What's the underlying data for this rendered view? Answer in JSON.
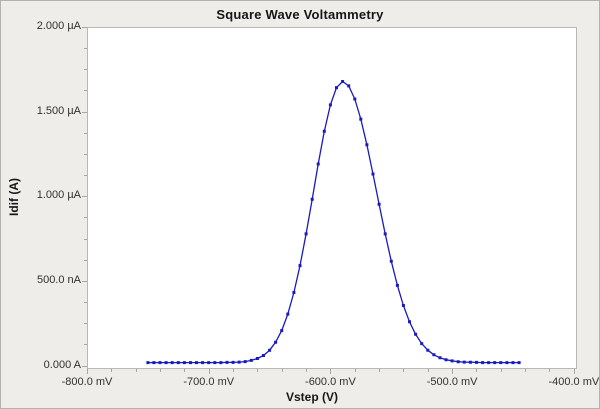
{
  "window": {
    "background": "#efedea",
    "border_color": "#b4b2af"
  },
  "plot": {
    "background": "#ffffff",
    "axis_color": "#bab8b5",
    "tick_color": "#a9a7a4",
    "text_color": "#33312f"
  },
  "chart_data": {
    "type": "line",
    "title": "Square Wave Voltammetry",
    "xlabel": "Vstep (V)",
    "ylabel": "Idif (A)",
    "x_unit": "mV",
    "y_unit": "µA",
    "grid": false,
    "legend": "none",
    "xlim_mV": [
      -800,
      -397.4
    ],
    "ylim_uA": [
      -0.02,
      2.0
    ],
    "x_ticks": [
      {
        "value": -800,
        "label": "-800.0 mV"
      },
      {
        "value": -700,
        "label": "-700.0 mV"
      },
      {
        "value": -600,
        "label": "-600.0 mV"
      },
      {
        "value": -500,
        "label": "-500.0 mV"
      },
      {
        "value": -400,
        "label": "-400.0 mV"
      }
    ],
    "y_ticks": [
      {
        "value": 2.0,
        "label": "2.000 µA"
      },
      {
        "value": 1.5,
        "label": "1.500 µA"
      },
      {
        "value": 1.0,
        "label": "1.000 µA"
      },
      {
        "value": 0.5,
        "label": "500.0 nA"
      },
      {
        "value": 0.0,
        "label": "0.000 A"
      }
    ],
    "x_minor_step_mV": 20,
    "y_minor_step_uA": 0.125,
    "peak": {
      "x_mV": -590,
      "y_uA": 1.678
    },
    "series": [
      {
        "name": "Idif",
        "color": "#1a1ac0",
        "marker": "square",
        "marker_size_px": 3,
        "x_mV": [
          -750,
          -745,
          -740,
          -735,
          -730,
          -725,
          -720,
          -715,
          -710,
          -705,
          -700,
          -695,
          -690,
          -685,
          -680,
          -675,
          -670,
          -665,
          -660,
          -655,
          -650,
          -645,
          -640,
          -635,
          -630,
          -625,
          -620,
          -615,
          -610,
          -605,
          -600,
          -595,
          -590,
          -585,
          -580,
          -575,
          -570,
          -565,
          -560,
          -555,
          -550,
          -545,
          -540,
          -535,
          -530,
          -525,
          -520,
          -515,
          -510,
          -505,
          -500,
          -495,
          -490,
          -485,
          -480,
          -475,
          -470,
          -465,
          -460,
          -455,
          -450,
          -445
        ],
        "y_uA": [
          0.018,
          0.018,
          0.018,
          0.018,
          0.018,
          0.018,
          0.018,
          0.018,
          0.018,
          0.018,
          0.018,
          0.018,
          0.018,
          0.019,
          0.019,
          0.021,
          0.024,
          0.031,
          0.042,
          0.06,
          0.091,
          0.138,
          0.207,
          0.304,
          0.432,
          0.591,
          0.778,
          0.983,
          1.191,
          1.384,
          1.54,
          1.642,
          1.678,
          1.652,
          1.575,
          1.456,
          1.304,
          1.132,
          0.953,
          0.778,
          0.616,
          0.474,
          0.355,
          0.259,
          0.185,
          0.13,
          0.091,
          0.064,
          0.046,
          0.035,
          0.028,
          0.023,
          0.021,
          0.02,
          0.019,
          0.018,
          0.018,
          0.018,
          0.018,
          0.018,
          0.018,
          0.018
        ]
      }
    ]
  }
}
